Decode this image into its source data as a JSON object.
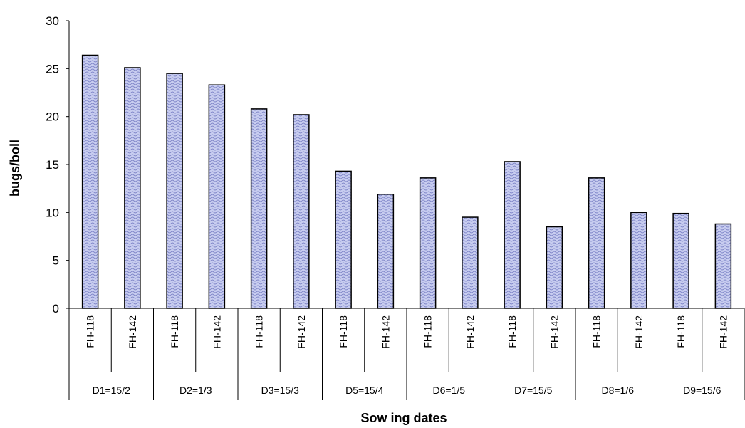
{
  "chart_data": {
    "type": "bar",
    "xlabel": "Sow ing dates",
    "ylabel": "bugs/boll",
    "ylim": [
      0,
      30
    ],
    "yticks": [
      0,
      5,
      10,
      15,
      20,
      25,
      30
    ],
    "grid": false,
    "legend": "none",
    "bar_fill": "#c8cdf0",
    "bar_pattern_color": "#7f86c8",
    "bar_stroke": "#000000",
    "groups": [
      {
        "label": "D1=15/2",
        "bars": [
          {
            "label": "FH-118",
            "value": 26.4
          },
          {
            "label": "FH-142",
            "value": 25.1
          }
        ]
      },
      {
        "label": "D2=1/3",
        "bars": [
          {
            "label": "FH-118",
            "value": 24.5
          },
          {
            "label": "FH-142",
            "value": 23.3
          }
        ]
      },
      {
        "label": "D3=15/3",
        "bars": [
          {
            "label": "FH-118",
            "value": 20.8
          },
          {
            "label": "FH-142",
            "value": 20.2
          }
        ]
      },
      {
        "label": "D5=15/4",
        "bars": [
          {
            "label": "FH-118",
            "value": 14.3
          },
          {
            "label": "FH-142",
            "value": 11.9
          }
        ]
      },
      {
        "label": "D6=1/5",
        "bars": [
          {
            "label": "FH-118",
            "value": 13.6
          },
          {
            "label": "FH-142",
            "value": 9.5
          }
        ]
      },
      {
        "label": "D7=15/5",
        "bars": [
          {
            "label": "FH-118",
            "value": 15.3
          },
          {
            "label": "FH-142",
            "value": 8.5
          }
        ]
      },
      {
        "label": "D8=1/6",
        "bars": [
          {
            "label": "FH-118",
            "value": 13.6
          },
          {
            "label": "FH-142",
            "value": 10.0
          }
        ]
      },
      {
        "label": "D9=15/6",
        "bars": [
          {
            "label": "FH-118",
            "value": 9.9
          },
          {
            "label": "FH-142",
            "value": 8.8
          }
        ]
      }
    ]
  }
}
